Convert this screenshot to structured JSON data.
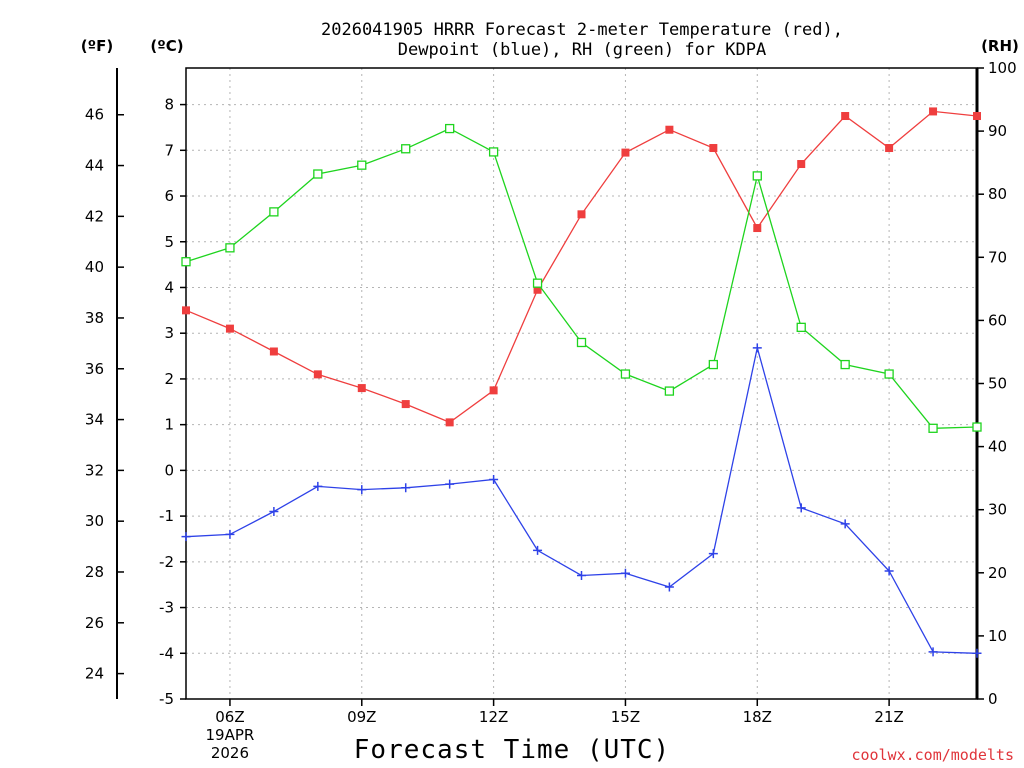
{
  "chart_data": {
    "type": "line",
    "title_line1": "2026041905 HRRR Forecast 2-meter Temperature (red),",
    "title_line2": "Dewpoint (blue), RH (green) for KDPA",
    "xlabel": "Forecast Time (UTC)",
    "credit": "coolwx.com/modelts",
    "units": {
      "fahrenheit": "(ºF)",
      "celsius": "(ºC)",
      "rh": "(RH)"
    },
    "x_hours": [
      5,
      6,
      7,
      8,
      9,
      10,
      11,
      12,
      13,
      14,
      15,
      16,
      17,
      18,
      19,
      20,
      21,
      22,
      23
    ],
    "x_ticks": [
      {
        "hour": 6,
        "label": "06Z",
        "sub1": "19APR",
        "sub2": "2026"
      },
      {
        "hour": 9,
        "label": "09Z"
      },
      {
        "hour": 12,
        "label": "12Z"
      },
      {
        "hour": 15,
        "label": "15Z"
      },
      {
        "hour": 18,
        "label": "18Z"
      },
      {
        "hour": 21,
        "label": "21Z"
      }
    ],
    "xlim": [
      5,
      23
    ],
    "celsius_range": [
      -5,
      8.8
    ],
    "celsius_ticks": [
      "-5",
      "-4",
      "-3",
      "-2",
      "-1",
      "0",
      "1",
      "2",
      "3",
      "4",
      "5",
      "6",
      "7",
      "8"
    ],
    "fahrenheit_ticks": [
      "24",
      "26",
      "28",
      "30",
      "32",
      "34",
      "36",
      "38",
      "40",
      "42",
      "44",
      "46"
    ],
    "rh_range": [
      0,
      100
    ],
    "rh_ticks": [
      "0",
      "10",
      "20",
      "30",
      "40",
      "50",
      "60",
      "70",
      "80",
      "90",
      "100"
    ],
    "grid": true,
    "series": [
      {
        "name": "Temperature",
        "axis": "celsius",
        "color": "#ef3e3e",
        "marker": "filled-square",
        "values": [
          3.5,
          3.1,
          2.6,
          2.1,
          1.8,
          1.45,
          1.05,
          1.75,
          3.95,
          5.6,
          6.95,
          7.45,
          7.05,
          5.3,
          6.7,
          7.75,
          7.05,
          7.85,
          7.75
        ]
      },
      {
        "name": "Dewpoint",
        "axis": "celsius",
        "color": "#2e42e8",
        "marker": "plus",
        "values": [
          -1.45,
          -1.4,
          -0.9,
          -0.35,
          -0.42,
          -0.38,
          -0.3,
          -0.2,
          -1.75,
          -2.3,
          -2.25,
          -2.55,
          -1.82,
          2.68,
          -0.82,
          -1.17,
          -2.2,
          -3.97,
          -4.0
        ]
      },
      {
        "name": "RH",
        "axis": "rh",
        "color": "#1ed41e",
        "marker": "open-square",
        "values": [
          69.3,
          71.5,
          77.2,
          83.2,
          84.6,
          87.2,
          90.4,
          86.7,
          65.9,
          56.5,
          51.5,
          48.8,
          53.0,
          82.9,
          58.9,
          53.0,
          51.5,
          42.9,
          43.1
        ]
      }
    ]
  }
}
